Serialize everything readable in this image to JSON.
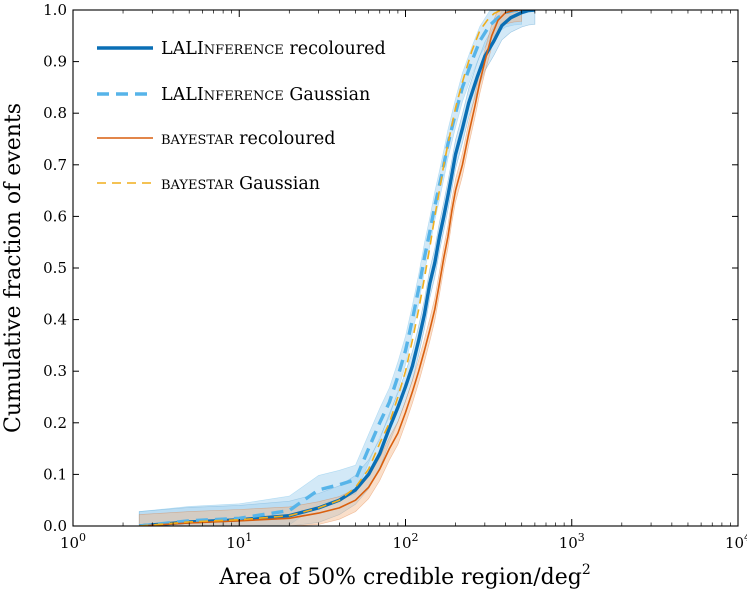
{
  "chart_data": {
    "type": "line",
    "xlabel": "Area of 50% credible region/deg",
    "xlabel_sup": "2",
    "ylabel": "Cumulative fraction of events",
    "xscale": "log",
    "xlim": [
      1,
      10000
    ],
    "ylim": [
      0,
      1
    ],
    "xticks": [
      {
        "base": "10",
        "exp": "0"
      },
      {
        "base": "10",
        "exp": "1"
      },
      {
        "base": "10",
        "exp": "2"
      },
      {
        "base": "10",
        "exp": "3"
      },
      {
        "base": "10",
        "exp": "4"
      }
    ],
    "yticks": [
      "0.0",
      "0.1",
      "0.2",
      "0.3",
      "0.4",
      "0.5",
      "0.6",
      "0.7",
      "0.8",
      "0.9",
      "1.0"
    ],
    "legend_position": "upper-left",
    "grid": false,
    "series": [
      {
        "name": "LALInference recoloured",
        "legend": {
          "smallcaps": true,
          "prefix": "LALI",
          "caps": "nference",
          "suffix": " recoloured"
        },
        "color": "#0a6fb5",
        "dash": "solid",
        "width": 3.4,
        "band_color": "#9ecfee",
        "band": 0.028,
        "x": [
          2.5,
          5,
          10,
          20,
          30,
          40,
          50,
          60,
          70,
          80,
          90,
          100,
          110,
          120,
          130,
          140,
          150,
          160,
          170,
          180,
          190,
          200,
          220,
          240,
          270,
          300,
          340,
          380,
          430,
          500,
          550,
          600
        ],
        "y": [
          0.0,
          0.008,
          0.012,
          0.02,
          0.035,
          0.05,
          0.07,
          0.1,
          0.14,
          0.19,
          0.23,
          0.27,
          0.31,
          0.36,
          0.41,
          0.47,
          0.51,
          0.56,
          0.6,
          0.64,
          0.68,
          0.72,
          0.77,
          0.82,
          0.87,
          0.91,
          0.94,
          0.97,
          0.985,
          0.995,
          0.999,
          1.0
        ]
      },
      {
        "name": "LALInference Gaussian",
        "legend": {
          "smallcaps": true,
          "prefix": "LALI",
          "caps": "nference",
          "suffix": " Gaussian"
        },
        "color": "#56b4e9",
        "dash": "dashed",
        "width": 3.4,
        "band_color": "#9ecfee",
        "band": 0.028,
        "x": [
          2.5,
          5,
          10,
          20,
          30,
          40,
          50,
          60,
          70,
          80,
          90,
          100,
          110,
          120,
          130,
          140,
          150,
          160,
          170,
          180,
          200,
          220,
          250,
          280,
          320,
          360,
          400,
          450,
          500
        ],
        "y": [
          0.0,
          0.01,
          0.015,
          0.03,
          0.07,
          0.08,
          0.09,
          0.15,
          0.2,
          0.24,
          0.29,
          0.34,
          0.4,
          0.46,
          0.52,
          0.57,
          0.62,
          0.66,
          0.7,
          0.74,
          0.8,
          0.85,
          0.9,
          0.94,
          0.97,
          0.985,
          0.995,
          0.999,
          1.0
        ]
      },
      {
        "name": "BAYESTAR recoloured",
        "legend": {
          "smallcaps": true,
          "prefix": "",
          "caps": "bayestar",
          "suffix": " recoloured"
        },
        "color": "#d95f0e",
        "dash": "solid",
        "width": 1.6,
        "band_color": "#f5b98a",
        "band": 0.022,
        "x": [
          2.5,
          5,
          10,
          20,
          30,
          40,
          50,
          60,
          70,
          80,
          90,
          100,
          110,
          120,
          130,
          140,
          150,
          160,
          170,
          180,
          190,
          200,
          220,
          240,
          260,
          280,
          300,
          330,
          360,
          400,
          450,
          500
        ],
        "y": [
          0.0,
          0.006,
          0.01,
          0.015,
          0.025,
          0.035,
          0.05,
          0.075,
          0.11,
          0.15,
          0.18,
          0.22,
          0.26,
          0.3,
          0.34,
          0.38,
          0.42,
          0.47,
          0.52,
          0.56,
          0.61,
          0.65,
          0.7,
          0.76,
          0.81,
          0.86,
          0.9,
          0.95,
          0.98,
          0.995,
          0.999,
          1.0
        ]
      },
      {
        "name": "BAYESTAR Gaussian",
        "legend": {
          "smallcaps": true,
          "prefix": "",
          "caps": "bayestar",
          "suffix": " Gaussian"
        },
        "color": "#f0ad1c",
        "dash": "dashed",
        "width": 1.6,
        "band_color": "#f8d890",
        "band": 0.0,
        "x": [
          2.5,
          5,
          10,
          20,
          30,
          40,
          50,
          60,
          70,
          80,
          90,
          100,
          110,
          120,
          130,
          140,
          150,
          160,
          170,
          180,
          200,
          220,
          250,
          280,
          310,
          340,
          370,
          400
        ],
        "y": [
          0.0,
          0.008,
          0.012,
          0.02,
          0.035,
          0.05,
          0.075,
          0.11,
          0.16,
          0.2,
          0.25,
          0.3,
          0.36,
          0.42,
          0.48,
          0.54,
          0.6,
          0.65,
          0.7,
          0.74,
          0.81,
          0.86,
          0.92,
          0.96,
          0.98,
          0.993,
          0.999,
          1.0
        ]
      }
    ]
  }
}
